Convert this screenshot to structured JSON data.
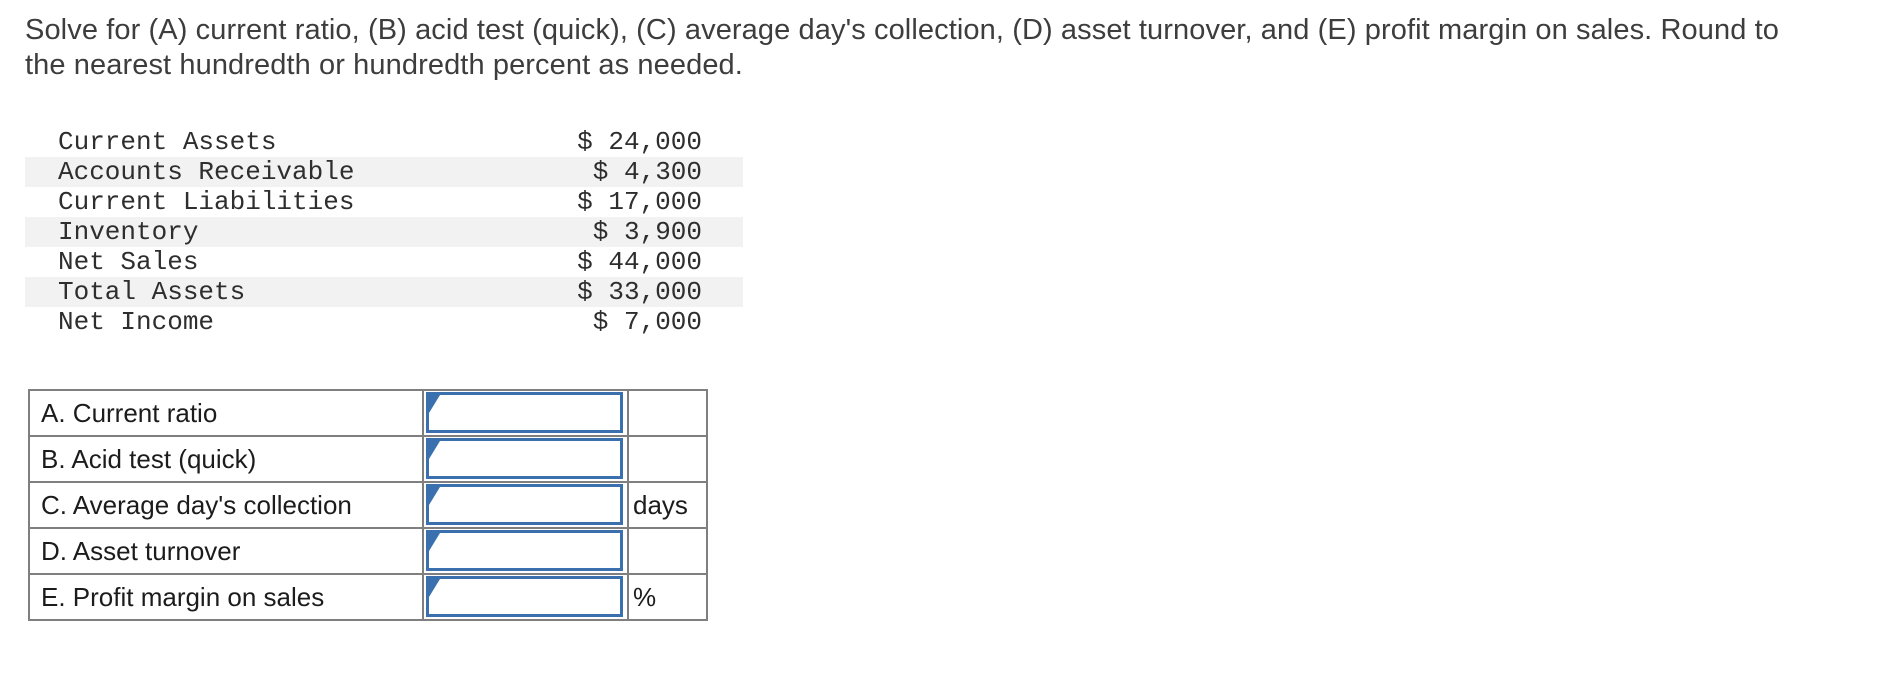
{
  "problem": {
    "line1": "Solve for (A) current ratio, (B) acid test (quick), (C) average day's collection, (D) asset turnover, and (E) profit margin on sales. Round to",
    "line2": "the nearest hundredth or hundredth percent as needed."
  },
  "financial_table": {
    "rows": [
      {
        "label": "Current Assets",
        "value": "$ 24,000"
      },
      {
        "label": "Accounts Receivable",
        "value": "$ 4,300"
      },
      {
        "label": "Current Liabilities",
        "value": "$ 17,000"
      },
      {
        "label": "Inventory",
        "value": "$ 3,900"
      },
      {
        "label": "Net Sales",
        "value": "$ 44,000"
      },
      {
        "label": "Total Assets",
        "value": "$ 33,000"
      },
      {
        "label": "Net Income",
        "value": "$ 7,000"
      }
    ]
  },
  "answer_table": {
    "rows": [
      {
        "label": "A. Current ratio",
        "input_value": "",
        "unit": ""
      },
      {
        "label": "B. Acid test (quick)",
        "input_value": "",
        "unit": ""
      },
      {
        "label": "C. Average day's collection",
        "input_value": "",
        "unit": "days"
      },
      {
        "label": "D. Asset turnover",
        "input_value": "",
        "unit": ""
      },
      {
        "label": "E. Profit margin on sales",
        "input_value": "",
        "unit": "%"
      }
    ]
  },
  "icons": {
    "answer_flag": "unanswered-flag-triangle"
  },
  "colors": {
    "input_border_blue": "#3a70ad",
    "table_border_gray": "#7f7f7f",
    "row_shading": "#f2f2f2",
    "text_dark": "#3d3d3d"
  }
}
